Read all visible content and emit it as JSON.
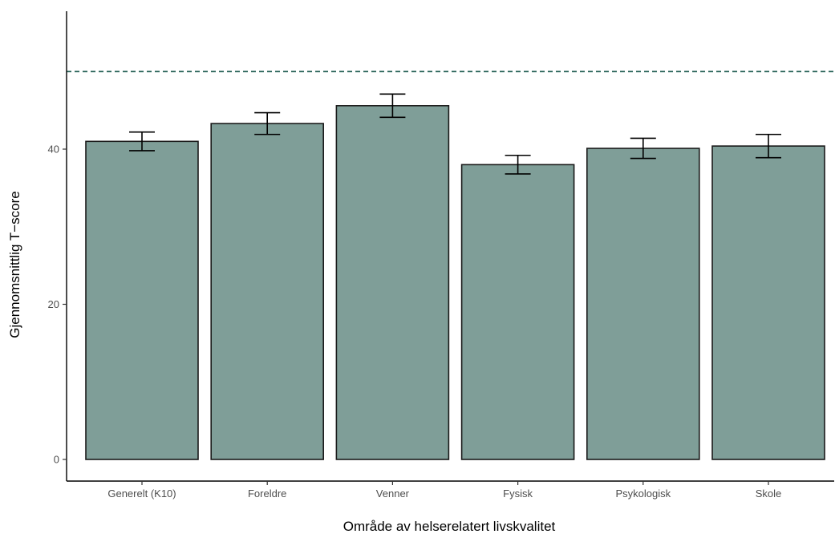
{
  "chart_data": {
    "type": "bar",
    "title": "",
    "xlabel": "Område av helserelatert livskvalitet",
    "ylabel": "Gjennomsnittlig T−score",
    "categories": [
      "Generelt (K10)",
      "Foreldre",
      "Venner",
      "Fysisk",
      "Psykologisk",
      "Skole"
    ],
    "values": [
      41.0,
      43.3,
      45.6,
      38.0,
      40.1,
      40.4
    ],
    "error_low": [
      39.8,
      41.9,
      44.1,
      36.8,
      38.8,
      38.9
    ],
    "error_high": [
      42.2,
      44.7,
      47.1,
      39.2,
      41.4,
      41.9
    ],
    "reference_line": 50,
    "ylim": [
      0,
      57.5
    ],
    "yticks": [
      "0",
      "20",
      "40"
    ],
    "grid": false,
    "colors": {
      "bar_fill": "#7f9e98",
      "bar_stroke": "#1a1a1a",
      "reference_line": "#1f5c50",
      "axis": "#000000"
    }
  }
}
